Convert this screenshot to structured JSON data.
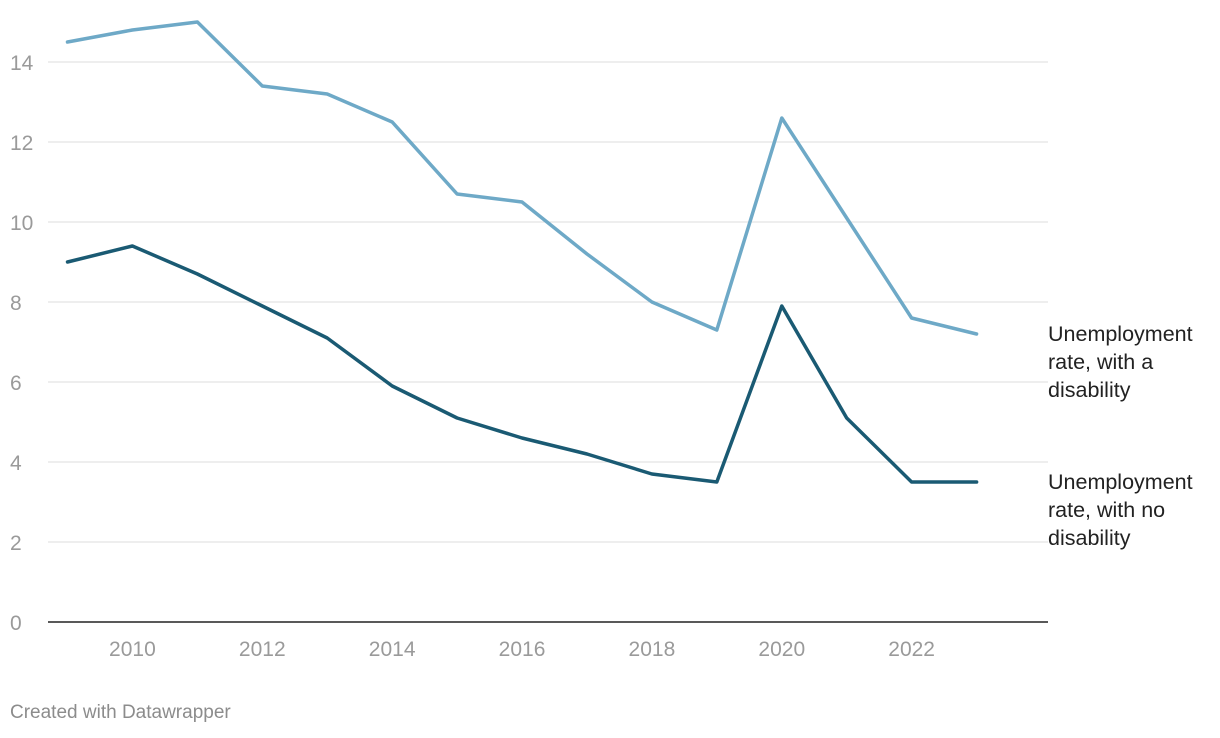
{
  "chart_data": {
    "type": "line",
    "title": "",
    "xlabel": "",
    "ylabel": "",
    "x": [
      2009,
      2010,
      2011,
      2012,
      2013,
      2014,
      2015,
      2016,
      2017,
      2018,
      2019,
      2020,
      2021,
      2022,
      2023
    ],
    "xlim": [
      2008.7,
      2024.1
    ],
    "ylim": [
      0,
      15.5
    ],
    "x_ticks": [
      "2010",
      "2012",
      "2014",
      "2016",
      "2018",
      "2020",
      "2022"
    ],
    "y_ticks": [
      "0",
      "2",
      "4",
      "6",
      "8",
      "10",
      "12",
      "14"
    ],
    "grid": true,
    "legend": "direct labels at right",
    "series": [
      {
        "name": "Unemployment rate, with a disability",
        "color": "#6ea9c7",
        "values": [
          14.5,
          14.8,
          15.0,
          13.4,
          13.2,
          12.5,
          10.7,
          10.5,
          9.2,
          8.0,
          7.3,
          12.6,
          10.1,
          7.6,
          7.2
        ]
      },
      {
        "name": "Unemployment rate, with no disability",
        "color": "#1a5a73",
        "values": [
          9.0,
          9.4,
          8.7,
          7.9,
          7.1,
          5.9,
          5.1,
          4.6,
          4.2,
          3.7,
          3.5,
          7.9,
          5.1,
          3.5,
          3.5
        ]
      }
    ]
  },
  "credit": "Created with Datawrapper"
}
